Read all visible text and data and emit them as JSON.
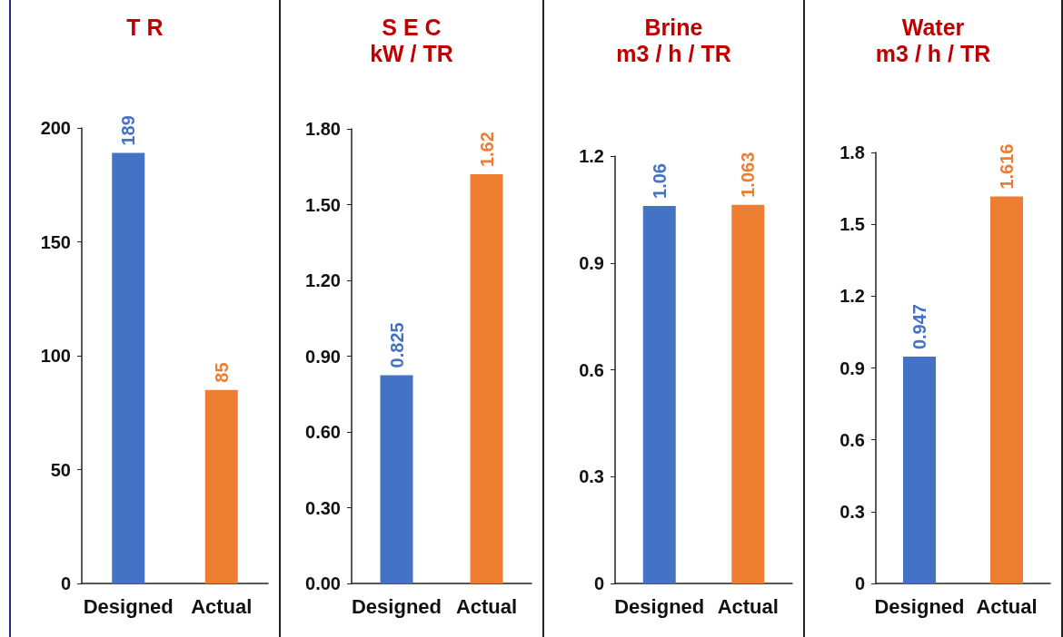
{
  "chart_data": [
    {
      "type": "bar",
      "title": "T R",
      "categories": [
        "Designed",
        "Actual"
      ],
      "values": [
        189,
        85
      ],
      "colors": [
        "#4472c4",
        "#ed7d31"
      ],
      "ylim": [
        0,
        200
      ],
      "yticks": [
        0,
        50,
        100,
        150,
        200
      ],
      "data_labels": true
    },
    {
      "type": "bar",
      "title": "S E C",
      "subtitle": "kW / TR",
      "categories": [
        "Designed",
        "Actual"
      ],
      "values": [
        0.825,
        1.62
      ],
      "colors": [
        "#4472c4",
        "#ed7d31"
      ],
      "ylim": [
        0,
        1.8
      ],
      "yticks": [
        {
          "value": 0,
          "label": "0.00"
        },
        {
          "value": 0.3,
          "label": "0.30"
        },
        {
          "value": 0.6,
          "label": "0.60"
        },
        {
          "value": 0.9,
          "label": "0.90"
        },
        {
          "value": 1.2,
          "label": "1.20"
        },
        {
          "value": 1.5,
          "label": "1.50"
        },
        {
          "value": 1.8,
          "label": "1.80"
        }
      ],
      "data_labels": true
    },
    {
      "type": "bar",
      "title": "Brine",
      "subtitle": "m3 / h / TR",
      "categories": [
        "Designed",
        "Actual"
      ],
      "values": [
        1.06,
        1.063
      ],
      "colors": [
        "#4472c4",
        "#ed7d31"
      ],
      "ylim": [
        0,
        1.2
      ],
      "yticks": [
        0,
        0.3,
        0.6,
        0.9,
        1.2
      ],
      "data_labels": true
    },
    {
      "type": "bar",
      "title": "Water",
      "subtitle": "m3 / h / TR",
      "categories": [
        "Designed",
        "Actual"
      ],
      "values": [
        0.947,
        1.616
      ],
      "colors": [
        "#4472c4",
        "#ed7d31"
      ],
      "ylim": [
        0,
        1.8
      ],
      "yticks": [
        0,
        0.3,
        0.6,
        0.9,
        1.2,
        1.5,
        1.8
      ],
      "data_labels": true
    }
  ]
}
